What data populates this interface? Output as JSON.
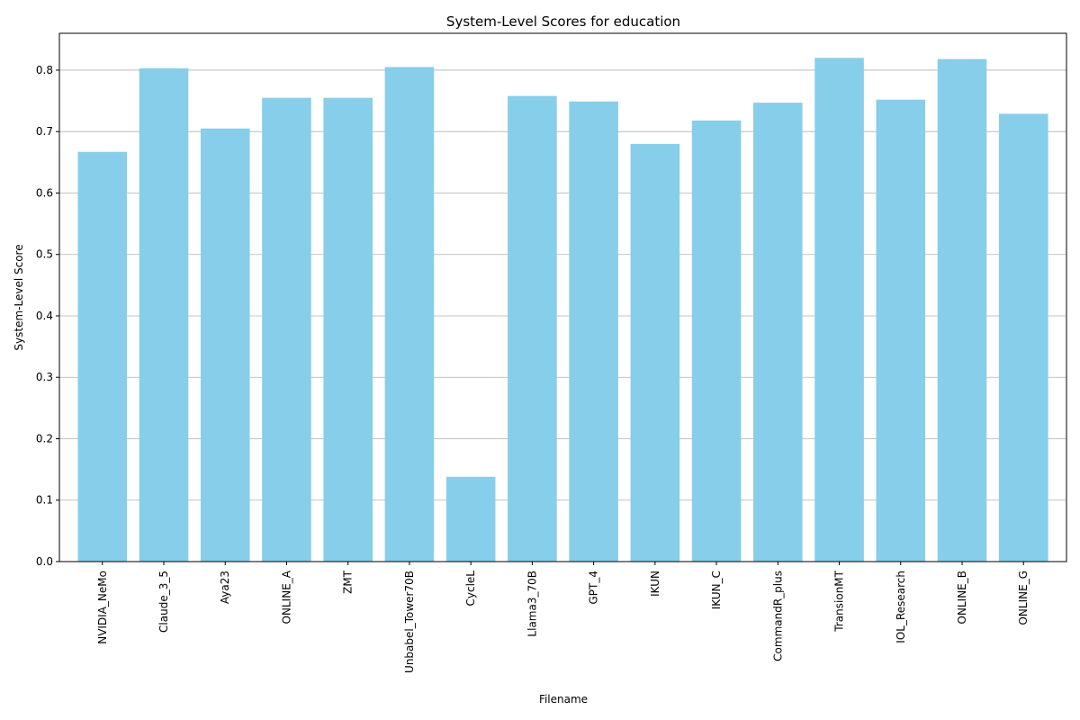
{
  "chart_data": {
    "type": "bar",
    "title": "System-Level Scores for education",
    "xlabel": "Filename",
    "ylabel": "System-Level Score",
    "categories": [
      "NVIDIA_NeMo",
      "Claude_3_5",
      "Aya23",
      "ONLINE_A",
      "ZMT",
      "Unbabel_Tower70B",
      "CycleL",
      "Llama3_70B",
      "GPT_4",
      "IKUN",
      "IKUN_C",
      "CommandR_plus",
      "TransionMT",
      "IOL_Research",
      "ONLINE_B",
      "ONLINE_G"
    ],
    "values": [
      0.667,
      0.803,
      0.705,
      0.755,
      0.755,
      0.805,
      0.138,
      0.758,
      0.749,
      0.68,
      0.718,
      0.747,
      0.82,
      0.752,
      0.818,
      0.729
    ],
    "ylim": [
      0,
      0.86
    ],
    "yticks": [
      0.0,
      0.1,
      0.2,
      0.3,
      0.4,
      0.5,
      0.6,
      0.7,
      0.8
    ],
    "ytick_labels": [
      "0.0",
      "0.1",
      "0.2",
      "0.3",
      "0.4",
      "0.5",
      "0.6",
      "0.7",
      "0.8"
    ],
    "grid": "y",
    "bar_color": "#87ceeb"
  }
}
